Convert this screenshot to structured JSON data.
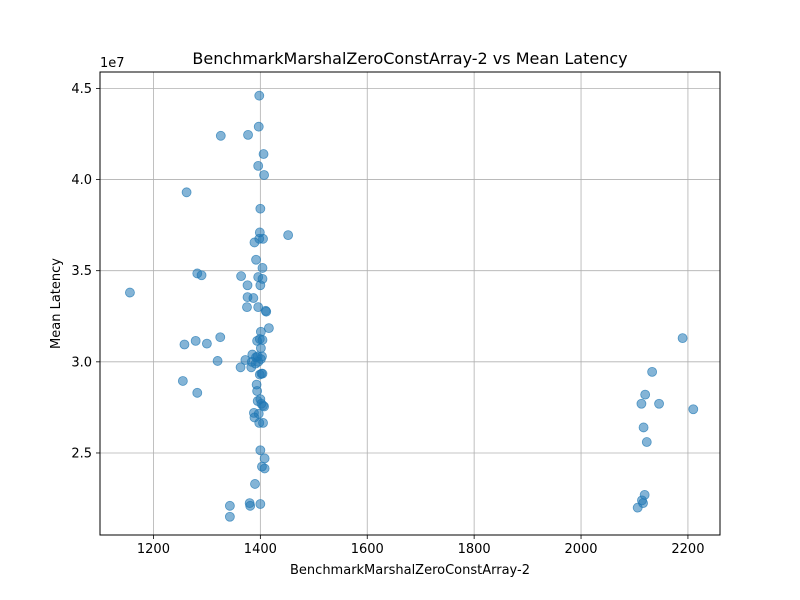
{
  "chart_data": {
    "type": "scatter",
    "title": "BenchmarkMarshalZeroConstArray-2 vs Mean Latency",
    "xlabel": "BenchmarkMarshalZeroConstArray-2",
    "ylabel": "Mean Latency",
    "y_offset_label": "1e7",
    "xlim": [
      1100,
      2260
    ],
    "ylim": [
      20500000,
      45900000
    ],
    "xticks": [
      1200,
      1400,
      1600,
      1800,
      2000,
      2200
    ],
    "xtick_labels": [
      "1200",
      "1400",
      "1600",
      "1800",
      "2000",
      "2200"
    ],
    "yticks": [
      25000000,
      30000000,
      35000000,
      40000000,
      45000000
    ],
    "ytick_labels": [
      "2.5",
      "3.0",
      "3.5",
      "4.0",
      "4.5"
    ],
    "grid": true,
    "color": "#1f77b4",
    "points": [
      [
        1156,
        33800000
      ],
      [
        1255,
        28950000
      ],
      [
        1258,
        30950000
      ],
      [
        1262,
        39300000
      ],
      [
        1279,
        31150000
      ],
      [
        1282,
        34850000
      ],
      [
        1282,
        28300000
      ],
      [
        1290,
        34750000
      ],
      [
        1300,
        31000000
      ],
      [
        1320,
        30050000
      ],
      [
        1325,
        31350000
      ],
      [
        1326,
        42400000
      ],
      [
        1343,
        22100000
      ],
      [
        1343,
        21500000
      ],
      [
        1363,
        29700000
      ],
      [
        1364,
        34700000
      ],
      [
        1372,
        30100000
      ],
      [
        1375,
        33000000
      ],
      [
        1376,
        34200000
      ],
      [
        1376,
        33550000
      ],
      [
        1377,
        42450000
      ],
      [
        1380,
        22250000
      ],
      [
        1381,
        22100000
      ],
      [
        1383,
        29700000
      ],
      [
        1384,
        30000000
      ],
      [
        1385,
        30400000
      ],
      [
        1387,
        33500000
      ],
      [
        1388,
        27200000
      ],
      [
        1389,
        26950000
      ],
      [
        1389,
        36550000
      ],
      [
        1390,
        23300000
      ],
      [
        1391,
        29900000
      ],
      [
        1392,
        30250000
      ],
      [
        1392,
        35600000
      ],
      [
        1393,
        28750000
      ],
      [
        1394,
        31150000
      ],
      [
        1394,
        28400000
      ],
      [
        1395,
        27850000
      ],
      [
        1395,
        30300000
      ],
      [
        1396,
        30000000
      ],
      [
        1396,
        33000000
      ],
      [
        1396,
        34650000
      ],
      [
        1396,
        40750000
      ],
      [
        1397,
        42900000
      ],
      [
        1397,
        27150000
      ],
      [
        1398,
        26650000
      ],
      [
        1398,
        36750000
      ],
      [
        1398,
        44600000
      ],
      [
        1399,
        37100000
      ],
      [
        1399,
        31250000
      ],
      [
        1399,
        29300000
      ],
      [
        1400,
        34200000
      ],
      [
        1400,
        38400000
      ],
      [
        1400,
        27950000
      ],
      [
        1400,
        25150000
      ],
      [
        1400,
        22200000
      ],
      [
        1401,
        31650000
      ],
      [
        1401,
        30750000
      ],
      [
        1401,
        30150000
      ],
      [
        1402,
        29350000
      ],
      [
        1402,
        27700000
      ],
      [
        1403,
        24250000
      ],
      [
        1403,
        30300000
      ],
      [
        1404,
        29350000
      ],
      [
        1404,
        31200000
      ],
      [
        1404,
        35150000
      ],
      [
        1404,
        34550000
      ],
      [
        1405,
        36750000
      ],
      [
        1405,
        26650000
      ],
      [
        1405,
        27600000
      ],
      [
        1406,
        41400000
      ],
      [
        1407,
        27550000
      ],
      [
        1407,
        40250000
      ],
      [
        1408,
        24700000
      ],
      [
        1408,
        24150000
      ],
      [
        1410,
        32800000
      ],
      [
        1411,
        32750000
      ],
      [
        1416,
        31850000
      ],
      [
        1452,
        36950000
      ],
      [
        2106,
        22000000
      ],
      [
        2113,
        27700000
      ],
      [
        2114,
        22400000
      ],
      [
        2116,
        22250000
      ],
      [
        2117,
        26400000
      ],
      [
        2119,
        22700000
      ],
      [
        2120,
        28200000
      ],
      [
        2123,
        25600000
      ],
      [
        2133,
        29450000
      ],
      [
        2146,
        27700000
      ],
      [
        2190,
        31300000
      ],
      [
        2210,
        27400000
      ]
    ]
  }
}
